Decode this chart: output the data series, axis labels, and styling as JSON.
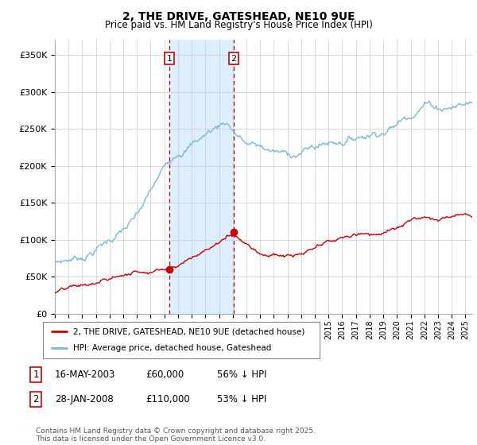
{
  "title": "2, THE DRIVE, GATESHEAD, NE10 9UE",
  "subtitle": "Price paid vs. HM Land Registry's House Price Index (HPI)",
  "ylim": [
    0,
    370000
  ],
  "yticks": [
    0,
    50000,
    100000,
    150000,
    200000,
    250000,
    300000,
    350000
  ],
  "ytick_labels": [
    "£0",
    "£50K",
    "£100K",
    "£150K",
    "£200K",
    "£250K",
    "£300K",
    "£350K"
  ],
  "sale1_date": 2003.37,
  "sale1_price": 60000,
  "sale2_date": 2008.08,
  "sale2_price": 110000,
  "hpi_color": "#7ab8d9",
  "price_color": "#cc0000",
  "shade_color": "#ddeeff",
  "legend_red_label": "2, THE DRIVE, GATESHEAD, NE10 9UE (detached house)",
  "legend_blue_label": "HPI: Average price, detached house, Gateshead",
  "table_rows": [
    {
      "num": "1",
      "date": "16-MAY-2003",
      "price": "£60,000",
      "hpi": "56% ↓ HPI"
    },
    {
      "num": "2",
      "date": "28-JAN-2008",
      "price": "£110,000",
      "hpi": "53% ↓ HPI"
    }
  ],
  "footer": "Contains HM Land Registry data © Crown copyright and database right 2025.\nThis data is licensed under the Open Government Licence v3.0.",
  "xmin": 1995,
  "xmax": 2025.5
}
